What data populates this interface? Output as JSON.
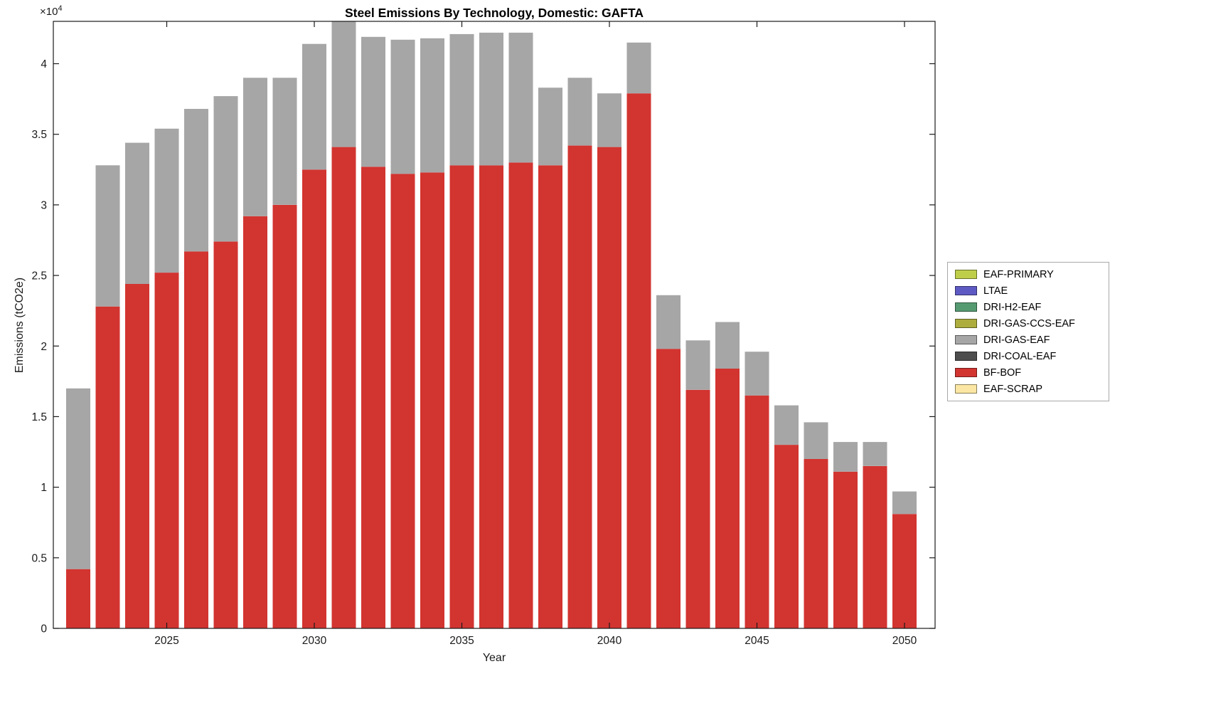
{
  "chart_data": {
    "type": "bar",
    "stacked": true,
    "title": "Steel Emissions By Technology, Domestic: GAFTA",
    "xlabel": "Year",
    "ylabel": "Emissions (tCO2e)",
    "y_multiplier": {
      "base": "×10",
      "exp": "4"
    },
    "ylim": [
      0,
      43000
    ],
    "ytick_values": [
      0,
      5000,
      10000,
      15000,
      20000,
      25000,
      30000,
      35000,
      40000
    ],
    "ytick_labels": [
      "0",
      "0.5",
      "1",
      "1.5",
      "2",
      "2.5",
      "3",
      "3.5",
      "4"
    ],
    "xtick_years": [
      2025,
      2030,
      2035,
      2040,
      2045,
      2050
    ],
    "xtick_labels": [
      "2025",
      "2030",
      "2035",
      "2040",
      "2045",
      "2050"
    ],
    "years": [
      2022,
      2023,
      2024,
      2025,
      2026,
      2027,
      2028,
      2029,
      2030,
      2031,
      2032,
      2033,
      2034,
      2035,
      2036,
      2037,
      2038,
      2039,
      2040,
      2041,
      2042,
      2043,
      2044,
      2045,
      2046,
      2047,
      2048,
      2049,
      2050
    ],
    "series": [
      {
        "name": "BF-BOF",
        "color": "#d23430",
        "values": [
          4200,
          22800,
          24400,
          25200,
          26700,
          27400,
          29200,
          30000,
          32500,
          34100,
          32700,
          32200,
          32300,
          32800,
          32800,
          33000,
          32800,
          34200,
          34100,
          37900,
          19800,
          16900,
          18400,
          16500,
          13000,
          12000,
          11100,
          11500,
          8100
        ]
      },
      {
        "name": "DRI-GAS-EAF",
        "color": "#a6a6a6",
        "values": [
          12800,
          10000,
          10000,
          10200,
          10100,
          10300,
          9800,
          9000,
          8900,
          8900,
          9200,
          9500,
          9500,
          9300,
          9400,
          9200,
          5500,
          4800,
          3800,
          3600,
          3800,
          3500,
          3300,
          3100,
          2800,
          2600,
          2100,
          1700,
          1600
        ]
      }
    ],
    "legend": [
      {
        "label": "EAF-PRIMARY",
        "color": "#bfce49"
      },
      {
        "label": "LTAE",
        "color": "#5d5ac4"
      },
      {
        "label": "DRI-H2-EAF",
        "color": "#569a72"
      },
      {
        "label": "DRI-GAS-CCS-EAF",
        "color": "#adad3e"
      },
      {
        "label": "DRI-GAS-EAF",
        "color": "#a6a6a6"
      },
      {
        "label": "DRI-COAL-EAF",
        "color": "#4d4d4d"
      },
      {
        "label": "BF-BOF",
        "color": "#d23430"
      },
      {
        "label": "EAF-SCRAP",
        "color": "#fbe7a3"
      }
    ],
    "legend_position": "right",
    "grid": false
  }
}
